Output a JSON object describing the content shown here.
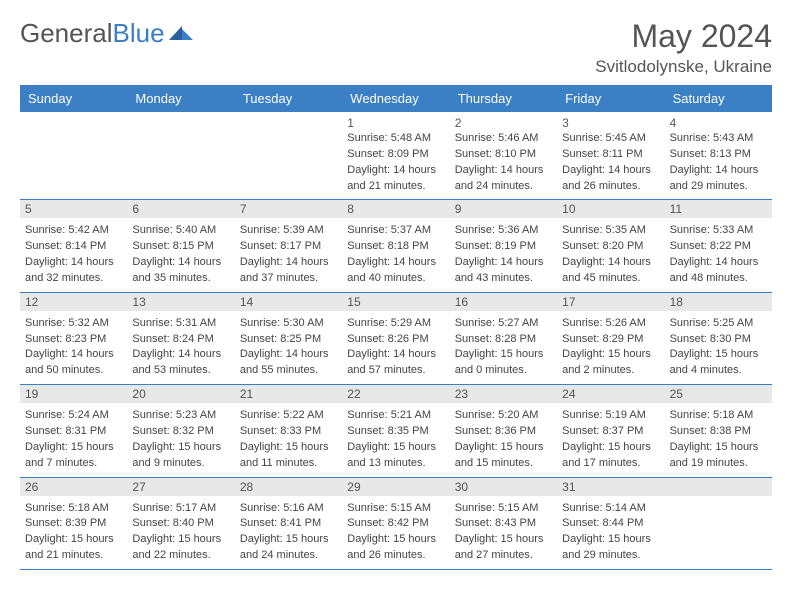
{
  "brand": {
    "part1": "General",
    "part2": "Blue"
  },
  "title": "May 2024",
  "location": "Svitlodolynske, Ukraine",
  "colors": {
    "header_bg": "#3b7fc4",
    "band_bg": "#e8e8e8",
    "text": "#555555",
    "cell_text": "#444444"
  },
  "dow": [
    "Sunday",
    "Monday",
    "Tuesday",
    "Wednesday",
    "Thursday",
    "Friday",
    "Saturday"
  ],
  "weeks": [
    [
      {
        "n": "",
        "lines": [
          "",
          "",
          "",
          ""
        ]
      },
      {
        "n": "",
        "lines": [
          "",
          "",
          "",
          ""
        ]
      },
      {
        "n": "",
        "lines": [
          "",
          "",
          "",
          ""
        ]
      },
      {
        "n": "1",
        "lines": [
          "Sunrise: 5:48 AM",
          "Sunset: 8:09 PM",
          "Daylight: 14 hours",
          "and 21 minutes."
        ]
      },
      {
        "n": "2",
        "lines": [
          "Sunrise: 5:46 AM",
          "Sunset: 8:10 PM",
          "Daylight: 14 hours",
          "and 24 minutes."
        ]
      },
      {
        "n": "3",
        "lines": [
          "Sunrise: 5:45 AM",
          "Sunset: 8:11 PM",
          "Daylight: 14 hours",
          "and 26 minutes."
        ]
      },
      {
        "n": "4",
        "lines": [
          "Sunrise: 5:43 AM",
          "Sunset: 8:13 PM",
          "Daylight: 14 hours",
          "and 29 minutes."
        ]
      }
    ],
    [
      {
        "n": "5",
        "lines": [
          "Sunrise: 5:42 AM",
          "Sunset: 8:14 PM",
          "Daylight: 14 hours",
          "and 32 minutes."
        ]
      },
      {
        "n": "6",
        "lines": [
          "Sunrise: 5:40 AM",
          "Sunset: 8:15 PM",
          "Daylight: 14 hours",
          "and 35 minutes."
        ]
      },
      {
        "n": "7",
        "lines": [
          "Sunrise: 5:39 AM",
          "Sunset: 8:17 PM",
          "Daylight: 14 hours",
          "and 37 minutes."
        ]
      },
      {
        "n": "8",
        "lines": [
          "Sunrise: 5:37 AM",
          "Sunset: 8:18 PM",
          "Daylight: 14 hours",
          "and 40 minutes."
        ]
      },
      {
        "n": "9",
        "lines": [
          "Sunrise: 5:36 AM",
          "Sunset: 8:19 PM",
          "Daylight: 14 hours",
          "and 43 minutes."
        ]
      },
      {
        "n": "10",
        "lines": [
          "Sunrise: 5:35 AM",
          "Sunset: 8:20 PM",
          "Daylight: 14 hours",
          "and 45 minutes."
        ]
      },
      {
        "n": "11",
        "lines": [
          "Sunrise: 5:33 AM",
          "Sunset: 8:22 PM",
          "Daylight: 14 hours",
          "and 48 minutes."
        ]
      }
    ],
    [
      {
        "n": "12",
        "lines": [
          "Sunrise: 5:32 AM",
          "Sunset: 8:23 PM",
          "Daylight: 14 hours",
          "and 50 minutes."
        ]
      },
      {
        "n": "13",
        "lines": [
          "Sunrise: 5:31 AM",
          "Sunset: 8:24 PM",
          "Daylight: 14 hours",
          "and 53 minutes."
        ]
      },
      {
        "n": "14",
        "lines": [
          "Sunrise: 5:30 AM",
          "Sunset: 8:25 PM",
          "Daylight: 14 hours",
          "and 55 minutes."
        ]
      },
      {
        "n": "15",
        "lines": [
          "Sunrise: 5:29 AM",
          "Sunset: 8:26 PM",
          "Daylight: 14 hours",
          "and 57 minutes."
        ]
      },
      {
        "n": "16",
        "lines": [
          "Sunrise: 5:27 AM",
          "Sunset: 8:28 PM",
          "Daylight: 15 hours",
          "and 0 minutes."
        ]
      },
      {
        "n": "17",
        "lines": [
          "Sunrise: 5:26 AM",
          "Sunset: 8:29 PM",
          "Daylight: 15 hours",
          "and 2 minutes."
        ]
      },
      {
        "n": "18",
        "lines": [
          "Sunrise: 5:25 AM",
          "Sunset: 8:30 PM",
          "Daylight: 15 hours",
          "and 4 minutes."
        ]
      }
    ],
    [
      {
        "n": "19",
        "lines": [
          "Sunrise: 5:24 AM",
          "Sunset: 8:31 PM",
          "Daylight: 15 hours",
          "and 7 minutes."
        ]
      },
      {
        "n": "20",
        "lines": [
          "Sunrise: 5:23 AM",
          "Sunset: 8:32 PM",
          "Daylight: 15 hours",
          "and 9 minutes."
        ]
      },
      {
        "n": "21",
        "lines": [
          "Sunrise: 5:22 AM",
          "Sunset: 8:33 PM",
          "Daylight: 15 hours",
          "and 11 minutes."
        ]
      },
      {
        "n": "22",
        "lines": [
          "Sunrise: 5:21 AM",
          "Sunset: 8:35 PM",
          "Daylight: 15 hours",
          "and 13 minutes."
        ]
      },
      {
        "n": "23",
        "lines": [
          "Sunrise: 5:20 AM",
          "Sunset: 8:36 PM",
          "Daylight: 15 hours",
          "and 15 minutes."
        ]
      },
      {
        "n": "24",
        "lines": [
          "Sunrise: 5:19 AM",
          "Sunset: 8:37 PM",
          "Daylight: 15 hours",
          "and 17 minutes."
        ]
      },
      {
        "n": "25",
        "lines": [
          "Sunrise: 5:18 AM",
          "Sunset: 8:38 PM",
          "Daylight: 15 hours",
          "and 19 minutes."
        ]
      }
    ],
    [
      {
        "n": "26",
        "lines": [
          "Sunrise: 5:18 AM",
          "Sunset: 8:39 PM",
          "Daylight: 15 hours",
          "and 21 minutes."
        ]
      },
      {
        "n": "27",
        "lines": [
          "Sunrise: 5:17 AM",
          "Sunset: 8:40 PM",
          "Daylight: 15 hours",
          "and 22 minutes."
        ]
      },
      {
        "n": "28",
        "lines": [
          "Sunrise: 5:16 AM",
          "Sunset: 8:41 PM",
          "Daylight: 15 hours",
          "and 24 minutes."
        ]
      },
      {
        "n": "29",
        "lines": [
          "Sunrise: 5:15 AM",
          "Sunset: 8:42 PM",
          "Daylight: 15 hours",
          "and 26 minutes."
        ]
      },
      {
        "n": "30",
        "lines": [
          "Sunrise: 5:15 AM",
          "Sunset: 8:43 PM",
          "Daylight: 15 hours",
          "and 27 minutes."
        ]
      },
      {
        "n": "31",
        "lines": [
          "Sunrise: 5:14 AM",
          "Sunset: 8:44 PM",
          "Daylight: 15 hours",
          "and 29 minutes."
        ]
      },
      {
        "n": "",
        "lines": [
          "",
          "",
          "",
          ""
        ]
      }
    ]
  ]
}
